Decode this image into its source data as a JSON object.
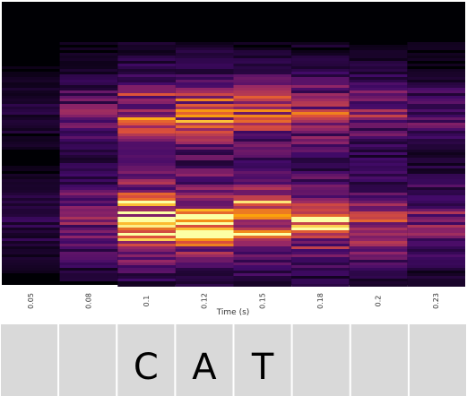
{
  "x_axis": {
    "label": "Time (s)",
    "ticks": [
      "0.05",
      "0.08",
      "0.1",
      "0.12",
      "0.15",
      "0.18",
      "0.2",
      "0.23"
    ]
  },
  "letters": [
    null,
    null,
    "C",
    "A",
    "T",
    null,
    null,
    null
  ]
}
